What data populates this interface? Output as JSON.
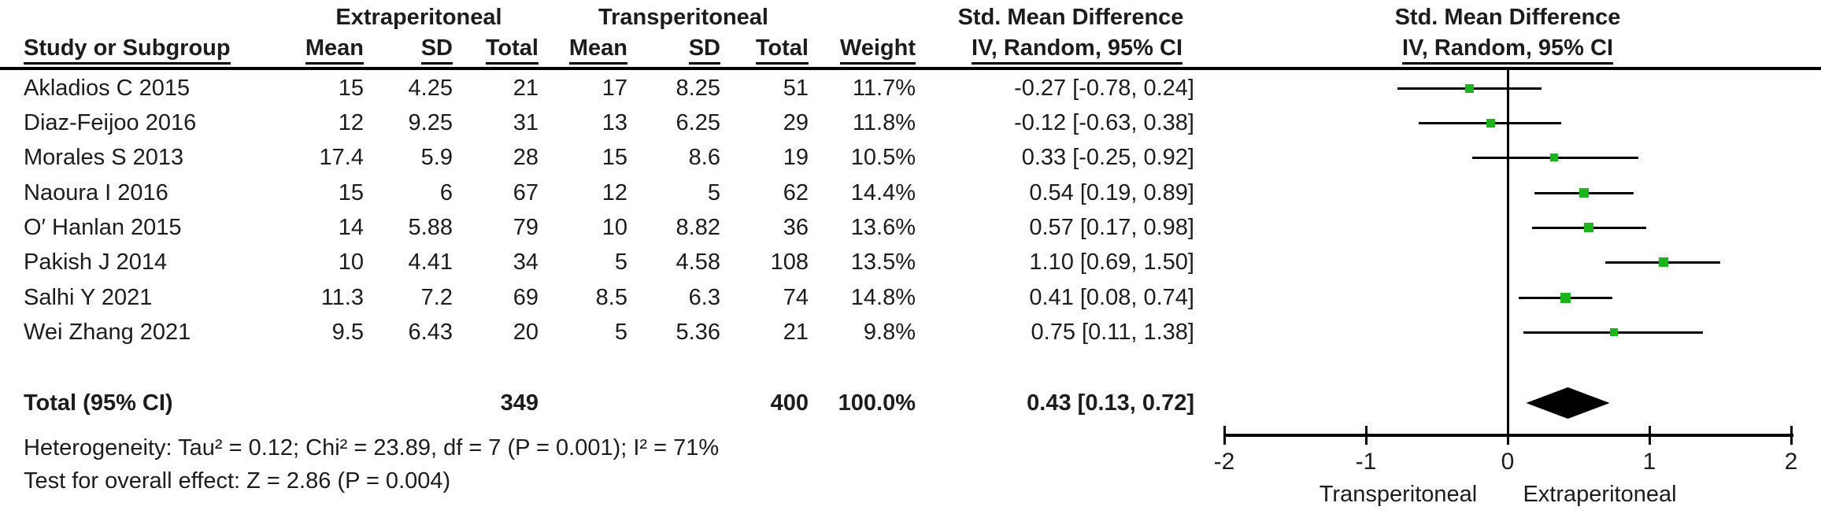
{
  "header": {
    "group1": "Extraperitoneal",
    "group2": "Transperitoneal",
    "study_col": "Study or Subgroup",
    "mean_col": "Mean",
    "sd_col": "SD",
    "total_col": "Total",
    "weight_col": "Weight",
    "effect_line1": "Std. Mean Difference",
    "effect_line2": "IV, Random, 95% CI",
    "plot_line1": "Std. Mean Difference",
    "plot_line2": "IV, Random, 95% CI"
  },
  "chart_data": {
    "type": "forest",
    "effect_measure": "Std. Mean Difference",
    "model": "IV, Random, 95% CI",
    "xlim": [
      -2,
      2
    ],
    "x_ticks": [
      -2,
      -1,
      0,
      1,
      2
    ],
    "x_tick_labels": [
      "-2",
      "-1",
      "0",
      "1",
      "2"
    ],
    "x_left_label": "Transperitoneal",
    "x_right_label": "Extraperitoneal",
    "marker_color": "#1CB41C",
    "line_color": "#000000",
    "studies": [
      {
        "study": "Akladios C 2015",
        "e_mean": "15",
        "e_sd": "4.25",
        "e_total": "21",
        "t_mean": "17",
        "t_sd": "8.25",
        "t_total": "51",
        "weight": "11.7%",
        "ci_text": "-0.27 [-0.78, 0.24]",
        "est": -0.27,
        "lo": -0.78,
        "hi": 0.24,
        "weight_pct": 11.7
      },
      {
        "study": "Diaz-Feijoo 2016",
        "e_mean": "12",
        "e_sd": "9.25",
        "e_total": "31",
        "t_mean": "13",
        "t_sd": "6.25",
        "t_total": "29",
        "weight": "11.8%",
        "ci_text": "-0.12 [-0.63, 0.38]",
        "est": -0.12,
        "lo": -0.63,
        "hi": 0.38,
        "weight_pct": 11.8
      },
      {
        "study": "Morales S 2013",
        "e_mean": "17.4",
        "e_sd": "5.9",
        "e_total": "28",
        "t_mean": "15",
        "t_sd": "8.6",
        "t_total": "19",
        "weight": "10.5%",
        "ci_text": "0.33 [-0.25, 0.92]",
        "est": 0.33,
        "lo": -0.25,
        "hi": 0.92,
        "weight_pct": 10.5
      },
      {
        "study": "Naoura I 2016",
        "e_mean": "15",
        "e_sd": "6",
        "e_total": "67",
        "t_mean": "12",
        "t_sd": "5",
        "t_total": "62",
        "weight": "14.4%",
        "ci_text": "0.54 [0.19, 0.89]",
        "est": 0.54,
        "lo": 0.19,
        "hi": 0.89,
        "weight_pct": 14.4
      },
      {
        "study": "O′ Hanlan 2015",
        "e_mean": "14",
        "e_sd": "5.88",
        "e_total": "79",
        "t_mean": "10",
        "t_sd": "8.82",
        "t_total": "36",
        "weight": "13.6%",
        "ci_text": "0.57 [0.17, 0.98]",
        "est": 0.57,
        "lo": 0.17,
        "hi": 0.98,
        "weight_pct": 13.6
      },
      {
        "study": "Pakish J 2014",
        "e_mean": "10",
        "e_sd": "4.41",
        "e_total": "34",
        "t_mean": "5",
        "t_sd": "4.58",
        "t_total": "108",
        "weight": "13.5%",
        "ci_text": "1.10 [0.69, 1.50]",
        "est": 1.1,
        "lo": 0.69,
        "hi": 1.5,
        "weight_pct": 13.5
      },
      {
        "study": "Salhi Y 2021",
        "e_mean": "11.3",
        "e_sd": "7.2",
        "e_total": "69",
        "t_mean": "8.5",
        "t_sd": "6.3",
        "t_total": "74",
        "weight": "14.8%",
        "ci_text": "0.41 [0.08, 0.74]",
        "est": 0.41,
        "lo": 0.08,
        "hi": 0.74,
        "weight_pct": 14.8
      },
      {
        "study": "Wei Zhang 2021",
        "e_mean": "9.5",
        "e_sd": "6.43",
        "e_total": "20",
        "t_mean": "5",
        "t_sd": "5.36",
        "t_total": "21",
        "weight": "9.8%",
        "ci_text": "0.75 [0.11, 1.38]",
        "est": 0.75,
        "lo": 0.11,
        "hi": 1.38,
        "weight_pct": 9.8
      }
    ],
    "total": {
      "label": "Total (95% CI)",
      "e_total": "349",
      "t_total": "400",
      "weight": "100.0%",
      "ci_text": "0.43 [0.13, 0.72]",
      "est": 0.43,
      "lo": 0.13,
      "hi": 0.72
    }
  },
  "footer": {
    "heterogeneity": "Heterogeneity: Tau² = 0.12; Chi² = 23.89, df = 7 (P = 0.001); I² = 71%",
    "overall_effect": "Test for overall effect: Z = 2.86 (P = 0.004)"
  }
}
